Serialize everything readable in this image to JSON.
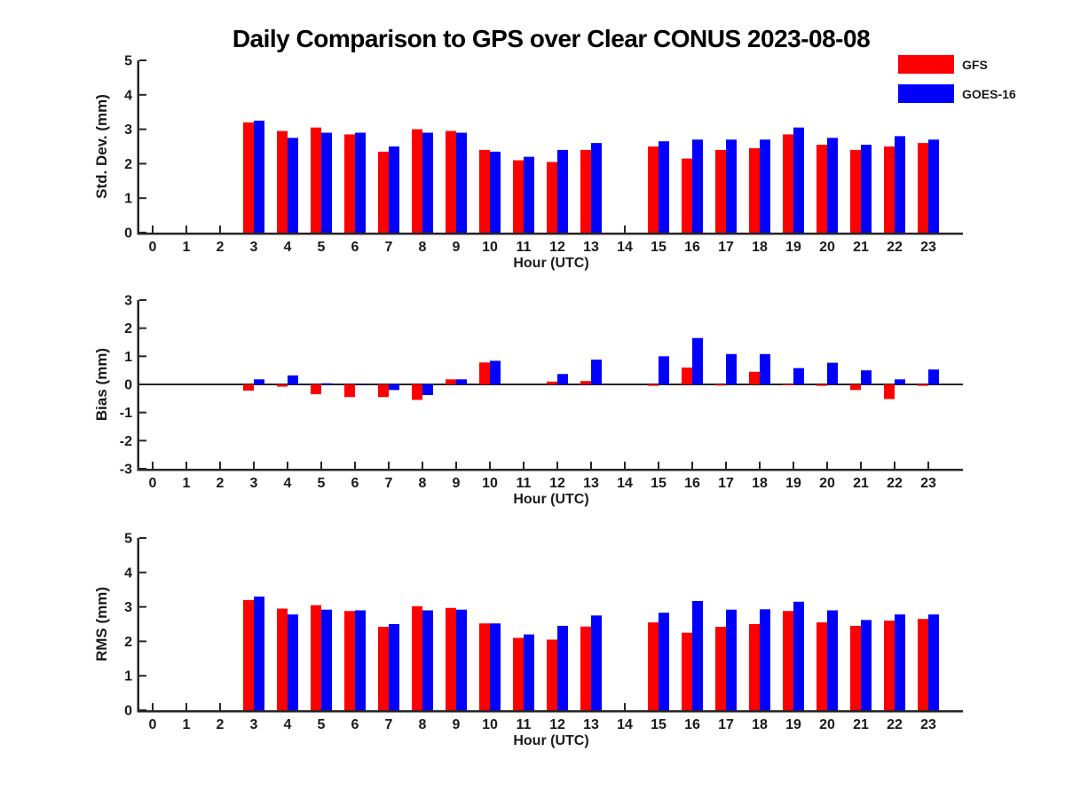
{
  "figure": {
    "title": "Daily Comparison to GPS over Clear CONUS 2023-08-08",
    "background": "#ffffff"
  },
  "legend": {
    "position": "top-right",
    "items": [
      {
        "label": "GFS",
        "color": "#ff0000"
      },
      {
        "label": "GOES-16",
        "color": "#0000ff"
      }
    ]
  },
  "chart_data": [
    {
      "type": "bar",
      "name": "std-dev",
      "title": "",
      "xlabel": "Hour (UTC)",
      "ylabel": "Std. Dev. (mm)",
      "xlim": [
        -0.5,
        24
      ],
      "ylim": [
        0,
        5
      ],
      "yticks": [
        0,
        1,
        2,
        3,
        4,
        5
      ],
      "grid": false,
      "x": [
        0,
        1,
        2,
        3,
        4,
        5,
        6,
        7,
        8,
        9,
        10,
        11,
        12,
        13,
        14,
        15,
        16,
        17,
        18,
        19,
        20,
        21,
        22,
        23
      ],
      "series": [
        {
          "name": "GFS",
          "color": "#ff0000",
          "values": [
            null,
            null,
            null,
            3.2,
            2.95,
            3.05,
            2.85,
            2.35,
            3.0,
            2.95,
            2.4,
            2.1,
            2.05,
            2.4,
            null,
            2.5,
            2.15,
            2.4,
            2.45,
            2.85,
            2.55,
            2.4,
            2.5,
            2.6
          ]
        },
        {
          "name": "GOES-16",
          "color": "#0000ff",
          "values": [
            null,
            null,
            null,
            3.25,
            2.75,
            2.9,
            2.9,
            2.5,
            2.9,
            2.9,
            2.35,
            2.2,
            2.4,
            2.6,
            null,
            2.65,
            2.7,
            2.7,
            2.7,
            3.05,
            2.75,
            2.55,
            2.8,
            2.7
          ]
        }
      ]
    },
    {
      "type": "bar",
      "name": "bias",
      "title": "",
      "xlabel": "Hour (UTC)",
      "ylabel": "Bias (mm)",
      "xlim": [
        -0.5,
        24
      ],
      "ylim": [
        -3,
        3
      ],
      "yticks": [
        3,
        2,
        1,
        0,
        -1,
        -2,
        -3
      ],
      "zero_line": true,
      "grid": false,
      "x": [
        0,
        1,
        2,
        3,
        4,
        5,
        6,
        7,
        8,
        9,
        10,
        11,
        12,
        13,
        14,
        15,
        16,
        17,
        18,
        19,
        20,
        21,
        22,
        23
      ],
      "series": [
        {
          "name": "GFS",
          "color": "#ff0000",
          "values": [
            null,
            null,
            null,
            -0.22,
            -0.08,
            -0.35,
            -0.45,
            -0.45,
            -0.55,
            0.18,
            0.78,
            0,
            0.1,
            0.12,
            null,
            -0.05,
            0.6,
            -0.04,
            0.45,
            -0.03,
            -0.05,
            -0.2,
            -0.52,
            -0.05
          ]
        },
        {
          "name": "GOES-16",
          "color": "#0000ff",
          "values": [
            null,
            null,
            null,
            0.18,
            0.32,
            0.04,
            0.02,
            -0.2,
            -0.38,
            0.18,
            0.84,
            0,
            0.37,
            0.88,
            null,
            1.0,
            1.65,
            1.08,
            1.08,
            0.58,
            0.77,
            0.5,
            0.18,
            0.53
          ]
        }
      ]
    },
    {
      "type": "bar",
      "name": "rms",
      "title": "",
      "xlabel": "Hour (UTC)",
      "ylabel": "RMS (mm)",
      "xlim": [
        -0.5,
        24
      ],
      "ylim": [
        0,
        5
      ],
      "yticks": [
        0,
        1,
        2,
        3,
        4,
        5
      ],
      "grid": false,
      "x": [
        0,
        1,
        2,
        3,
        4,
        5,
        6,
        7,
        8,
        9,
        10,
        11,
        12,
        13,
        14,
        15,
        16,
        17,
        18,
        19,
        20,
        21,
        22,
        23
      ],
      "series": [
        {
          "name": "GFS",
          "color": "#ff0000",
          "values": [
            null,
            null,
            null,
            3.2,
            2.95,
            3.05,
            2.88,
            2.42,
            3.02,
            2.97,
            2.52,
            2.1,
            2.05,
            2.43,
            null,
            2.55,
            2.25,
            2.42,
            2.5,
            2.88,
            2.55,
            2.45,
            2.6,
            2.65
          ]
        },
        {
          "name": "GOES-16",
          "color": "#0000ff",
          "values": [
            null,
            null,
            null,
            3.3,
            2.78,
            2.92,
            2.9,
            2.5,
            2.9,
            2.92,
            2.52,
            2.2,
            2.45,
            2.75,
            null,
            2.83,
            3.17,
            2.92,
            2.93,
            3.15,
            2.9,
            2.62,
            2.78,
            2.78
          ]
        }
      ]
    }
  ]
}
